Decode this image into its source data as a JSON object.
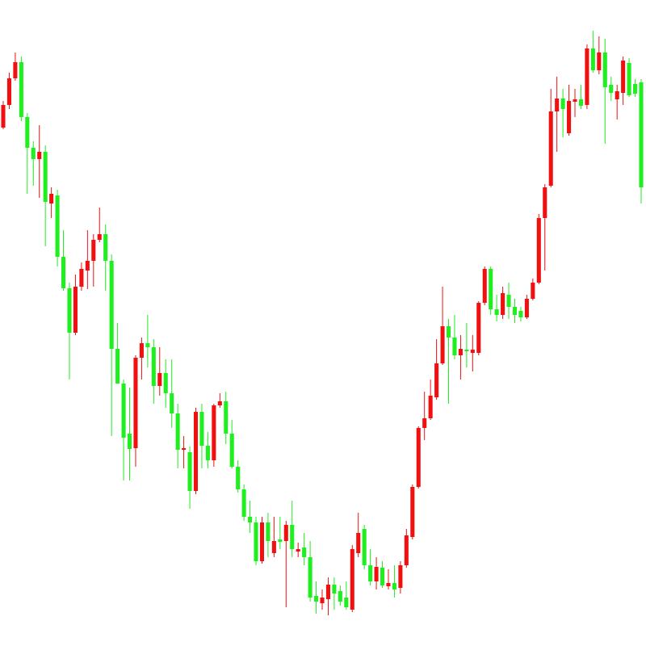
{
  "chart_data": {
    "type": "candlestick",
    "up_color": "#f01010",
    "down_color": "#1fee1f",
    "ylim": [
      0,
      800
    ],
    "open": [
      642,
      670,
      703,
      723,
      655,
      617,
      603,
      612,
      548,
      558,
      482,
      443,
      388,
      445,
      465,
      477,
      503,
      510,
      477,
      368,
      325,
      263,
      245,
      357,
      375,
      370,
      322,
      338,
      313,
      288,
      243,
      240,
      192,
      290,
      248,
      230,
      298,
      303,
      263,
      222,
      194,
      160,
      153,
      105,
      153,
      115,
      132,
      130,
      150,
      117,
      122,
      110,
      62,
      53,
      58,
      76,
      68,
      60,
      45,
      115,
      145,
      100,
      80,
      97,
      74,
      78,
      72,
      100,
      135,
      197,
      270,
      282,
      308,
      350,
      396,
      382,
      360,
      367,
      363,
      363,
      425,
      467,
      417,
      410,
      435,
      420,
      415,
      407,
      430,
      450,
      530,
      570,
      662,
      678,
      635,
      674,
      677,
      670,
      740,
      713,
      735,
      695,
      677,
      685,
      722,
      696,
      698
    ],
    "high": [
      675,
      710,
      735,
      730,
      660,
      625,
      645,
      620,
      568,
      565,
      515,
      450,
      460,
      475,
      515,
      510,
      543,
      522,
      485,
      400,
      330,
      320,
      360,
      382,
      410,
      380,
      370,
      355,
      355,
      300,
      260,
      247,
      295,
      300,
      265,
      300,
      313,
      315,
      280,
      230,
      200,
      180,
      160,
      160,
      165,
      160,
      160,
      155,
      180,
      128,
      140,
      130,
      80,
      70,
      85,
      85,
      75,
      80,
      125,
      165,
      150,
      120,
      110,
      105,
      95,
      100,
      105,
      145,
      200,
      272,
      315,
      330,
      380,
      445,
      405,
      410,
      385,
      400,
      385,
      427,
      470,
      470,
      435,
      445,
      450,
      430,
      420,
      435,
      455,
      535,
      572,
      690,
      705,
      690,
      695,
      690,
      695,
      745,
      762,
      755,
      752,
      705,
      695,
      730,
      728,
      702,
      702
    ],
    "low": [
      640,
      665,
      700,
      650,
      560,
      570,
      555,
      495,
      530,
      470,
      440,
      330,
      385,
      440,
      442,
      445,
      500,
      440,
      260,
      325,
      205,
      205,
      222,
      330,
      345,
      300,
      310,
      295,
      270,
      220,
      220,
      170,
      188,
      220,
      220,
      222,
      295,
      250,
      220,
      190,
      155,
      140,
      100,
      102,
      110,
      110,
      120,
      48,
      110,
      110,
      100,
      55,
      40,
      45,
      38,
      45,
      50,
      45,
      42,
      110,
      95,
      75,
      70,
      72,
      70,
      60,
      65,
      97,
      132,
      195,
      255,
      280,
      305,
      348,
      300,
      355,
      330,
      345,
      340,
      360,
      422,
      410,
      402,
      405,
      405,
      400,
      402,
      405,
      428,
      448,
      465,
      568,
      612,
      630,
      632,
      655,
      665,
      665,
      710,
      708,
      622,
      675,
      652,
      670,
      680,
      680,
      548
    ],
    "close": [
      670,
      703,
      723,
      655,
      617,
      603,
      612,
      550,
      560,
      482,
      443,
      388,
      445,
      467,
      477,
      503,
      510,
      477,
      368,
      325,
      258,
      244,
      357,
      375,
      370,
      322,
      338,
      313,
      288,
      243,
      245,
      192,
      290,
      248,
      230,
      298,
      303,
      263,
      222,
      194,
      160,
      153,
      105,
      153,
      130,
      130,
      129,
      150,
      120,
      120,
      110,
      60,
      55,
      60,
      76,
      65,
      55,
      48,
      120,
      140,
      100,
      80,
      98,
      75,
      78,
      70,
      100,
      137,
      197,
      270,
      282,
      310,
      350,
      396,
      382,
      360,
      368,
      365,
      367,
      425,
      467,
      417,
      410,
      437,
      420,
      410,
      407,
      430,
      450,
      530,
      568,
      662,
      678,
      665,
      675,
      677,
      669,
      740,
      713,
      735,
      692,
      685,
      687,
      725,
      682,
      684,
      568
    ]
  }
}
